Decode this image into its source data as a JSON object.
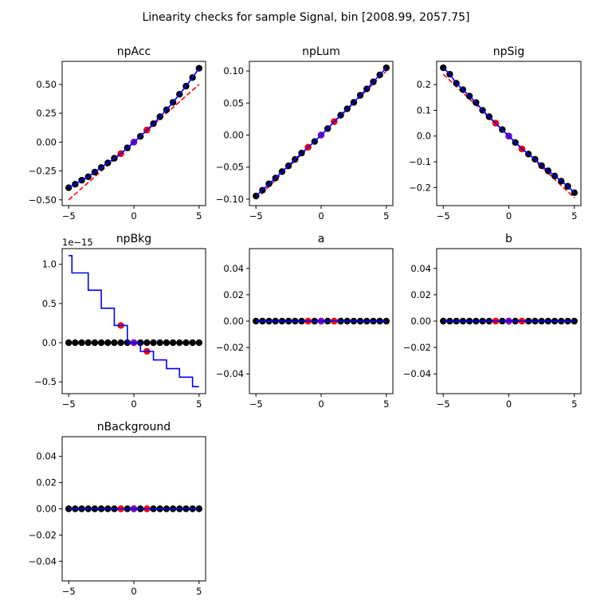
{
  "figure": {
    "title": "Linearity checks for sample Signal, bin [2008.99, 2057.75]"
  },
  "colors": {
    "points": "#000000",
    "highlight": "#ff0000",
    "center": "#7f00bf",
    "fit_line": "#0000ff",
    "reference_line": "#ff0000"
  },
  "chart_data": [
    {
      "type": "scatter",
      "title": "npAcc",
      "x": [
        -5,
        -4.5,
        -4,
        -3.5,
        -3,
        -2.5,
        -2,
        -1.5,
        -1,
        -0.5,
        0,
        0.5,
        1,
        1.5,
        2,
        2.5,
        3,
        3.5,
        4,
        4.5,
        5
      ],
      "y": [
        -0.395,
        -0.365,
        -0.33,
        -0.3,
        -0.26,
        -0.22,
        -0.18,
        -0.14,
        -0.1,
        -0.05,
        0.0,
        0.05,
        0.105,
        0.16,
        0.22,
        0.28,
        0.345,
        0.415,
        0.485,
        0.56,
        0.64
      ],
      "highlight_points": [
        {
          "x": -1,
          "y": -0.1
        },
        {
          "x": 1,
          "y": 0.105
        }
      ],
      "center_point": {
        "x": 0,
        "y": 0.0
      },
      "fit_line": {
        "x": [
          -5,
          -4.5,
          -4,
          -3.5,
          -3,
          -2.5,
          -2,
          -1.5,
          -1,
          -0.5,
          0,
          0.5,
          1,
          1.5,
          2,
          2.5,
          3,
          3.5,
          4,
          4.5,
          5
        ],
        "y": [
          -0.395,
          -0.365,
          -0.33,
          -0.3,
          -0.26,
          -0.22,
          -0.18,
          -0.14,
          -0.1,
          -0.05,
          0.0,
          0.05,
          0.105,
          0.16,
          0.22,
          0.28,
          0.345,
          0.415,
          0.485,
          0.56,
          0.64
        ]
      },
      "reference_line": {
        "x": [
          -5,
          5
        ],
        "y": [
          -0.5,
          0.5
        ]
      },
      "xlim": [
        -5.5,
        5.5
      ],
      "ylim": [
        -0.55,
        0.7
      ],
      "xticks": [
        {
          "v": -5,
          "label": "−5"
        },
        {
          "v": 0,
          "label": "0"
        },
        {
          "v": 5,
          "label": "5"
        }
      ],
      "yticks": [
        {
          "v": -0.5,
          "label": "−0.50"
        },
        {
          "v": -0.25,
          "label": "−0.25"
        },
        {
          "v": 0,
          "label": "0.00"
        },
        {
          "v": 0.25,
          "label": "0.25"
        },
        {
          "v": 0.5,
          "label": "0.50"
        }
      ],
      "offset_label": ""
    },
    {
      "type": "scatter",
      "title": "npLum",
      "x": [
        -5,
        -4.5,
        -4,
        -3.5,
        -3,
        -2.5,
        -2,
        -1.5,
        -1,
        -0.5,
        0,
        0.5,
        1,
        1.5,
        2,
        2.5,
        3,
        3.5,
        4,
        4.5,
        5
      ],
      "y": [
        -0.095,
        -0.086,
        -0.076,
        -0.067,
        -0.057,
        -0.048,
        -0.038,
        -0.028,
        -0.019,
        -0.01,
        0.0,
        0.01,
        0.021,
        0.031,
        0.041,
        0.051,
        0.062,
        0.072,
        0.083,
        0.094,
        0.105
      ],
      "highlight_points": [
        {
          "x": -1,
          "y": -0.019
        },
        {
          "x": 1,
          "y": 0.021
        }
      ],
      "center_point": {
        "x": 0,
        "y": 0.0
      },
      "fit_line": {
        "x": [
          -5,
          -4.5,
          -4,
          -3.5,
          -3,
          -2.5,
          -2,
          -1.5,
          -1,
          -0.5,
          0,
          0.5,
          1,
          1.5,
          2,
          2.5,
          3,
          3.5,
          4,
          4.5,
          5
        ],
        "y": [
          -0.095,
          -0.086,
          -0.076,
          -0.067,
          -0.057,
          -0.048,
          -0.038,
          -0.028,
          -0.019,
          -0.01,
          0.0,
          0.01,
          0.021,
          0.031,
          0.041,
          0.051,
          0.062,
          0.072,
          0.083,
          0.094,
          0.105
        ]
      },
      "reference_line": {
        "x": [
          -5,
          5
        ],
        "y": [
          -0.1,
          0.1
        ]
      },
      "xlim": [
        -5.5,
        5.5
      ],
      "ylim": [
        -0.11,
        0.115
      ],
      "xticks": [
        {
          "v": -5,
          "label": "−5"
        },
        {
          "v": 0,
          "label": "0"
        },
        {
          "v": 5,
          "label": "5"
        }
      ],
      "yticks": [
        {
          "v": -0.1,
          "label": "−0.10"
        },
        {
          "v": -0.05,
          "label": "−0.05"
        },
        {
          "v": 0,
          "label": "0.00"
        },
        {
          "v": 0.05,
          "label": "0.05"
        },
        {
          "v": 0.1,
          "label": "0.10"
        }
      ],
      "offset_label": ""
    },
    {
      "type": "scatter",
      "title": "npSig",
      "x": [
        -5,
        -4.5,
        -4,
        -3.5,
        -3,
        -2.5,
        -2,
        -1.5,
        -1,
        -0.5,
        0,
        0.5,
        1,
        1.5,
        2,
        2.5,
        3,
        3.5,
        4,
        4.5,
        5
      ],
      "y": [
        0.265,
        0.24,
        0.205,
        0.18,
        0.155,
        0.13,
        0.1,
        0.075,
        0.05,
        0.025,
        0.0,
        -0.025,
        -0.05,
        -0.07,
        -0.09,
        -0.115,
        -0.135,
        -0.155,
        -0.175,
        -0.195,
        -0.22
      ],
      "highlight_points": [
        {
          "x": -1,
          "y": 0.05
        },
        {
          "x": 1,
          "y": -0.05
        }
      ],
      "center_point": {
        "x": 0,
        "y": 0.0
      },
      "fit_line": {
        "x": [
          -5,
          -4.5,
          -4,
          -3.5,
          -3,
          -2.5,
          -2,
          -1.5,
          -1,
          -0.5,
          0,
          0.5,
          1,
          1.5,
          2,
          2.5,
          3,
          3.5,
          4,
          4.5,
          5
        ],
        "y": [
          0.265,
          0.24,
          0.205,
          0.18,
          0.155,
          0.13,
          0.1,
          0.075,
          0.05,
          0.025,
          0.0,
          -0.025,
          -0.05,
          -0.07,
          -0.09,
          -0.115,
          -0.135,
          -0.155,
          -0.175,
          -0.195,
          -0.22
        ]
      },
      "reference_line": {
        "x": [
          -5,
          5
        ],
        "y": [
          0.24,
          -0.24
        ]
      },
      "xlim": [
        -5.5,
        5.5
      ],
      "ylim": [
        -0.27,
        0.29
      ],
      "xticks": [
        {
          "v": -5,
          "label": "−5"
        },
        {
          "v": 0,
          "label": "0"
        },
        {
          "v": 5,
          "label": "5"
        }
      ],
      "yticks": [
        {
          "v": -0.2,
          "label": "−0.2"
        },
        {
          "v": -0.1,
          "label": "−0.1"
        },
        {
          "v": 0,
          "label": "0.0"
        },
        {
          "v": 0.1,
          "label": "0.1"
        },
        {
          "v": 0.2,
          "label": "0.2"
        }
      ],
      "offset_label": ""
    },
    {
      "type": "scatter",
      "title": "npBkg",
      "x": [
        -5,
        -4.5,
        -4,
        -3.5,
        -3,
        -2.5,
        -2,
        -1.5,
        -1,
        -0.5,
        0,
        0.5,
        1,
        1.5,
        2,
        2.5,
        3,
        3.5,
        4,
        4.5,
        5
      ],
      "y": [
        0,
        0,
        0,
        0,
        0,
        0,
        0,
        0,
        0,
        0,
        0,
        0,
        0,
        0,
        0,
        0,
        0,
        0,
        0,
        0,
        0
      ],
      "highlight_points": [
        {
          "x": -1,
          "y": 0.22
        },
        {
          "x": 1,
          "y": -0.11
        }
      ],
      "center_point": {
        "x": 0,
        "y": 0.0
      },
      "fit_line": {
        "x": [
          -5,
          -4.75,
          -4.75,
          -4.5,
          -4.5,
          -4,
          -4,
          -3.5,
          -3.5,
          -3,
          -3,
          -2.5,
          -2.5,
          -2,
          -2,
          -1.5,
          -1.5,
          -1,
          -1,
          -0.5,
          -0.5,
          0,
          0,
          0.5,
          0.5,
          1,
          1,
          1.5,
          1.5,
          2,
          2,
          2.5,
          2.5,
          3,
          3,
          3.5,
          3.5,
          4,
          4,
          4.5,
          4.5,
          5
        ],
        "y": [
          1.11,
          1.11,
          0.89,
          0.89,
          0.89,
          0.89,
          0.89,
          0.89,
          0.67,
          0.67,
          0.67,
          0.67,
          0.44,
          0.44,
          0.44,
          0.44,
          0.22,
          0.22,
          0.22,
          0.22,
          0.0,
          0.0,
          0.0,
          0.0,
          -0.11,
          -0.11,
          -0.11,
          -0.11,
          -0.22,
          -0.22,
          -0.22,
          -0.22,
          -0.33,
          -0.33,
          -0.33,
          -0.33,
          -0.44,
          -0.44,
          -0.44,
          -0.44,
          -0.56,
          -0.56
        ]
      },
      "reference_line": null,
      "xlim": [
        -5.5,
        5.5
      ],
      "ylim": [
        -0.65,
        1.2
      ],
      "xticks": [
        {
          "v": -5,
          "label": "−5"
        },
        {
          "v": 0,
          "label": "0"
        },
        {
          "v": 5,
          "label": "5"
        }
      ],
      "yticks": [
        {
          "v": -0.5,
          "label": "−0.5"
        },
        {
          "v": 0,
          "label": "0.0"
        },
        {
          "v": 0.5,
          "label": "0.5"
        },
        {
          "v": 1,
          "label": "1.0"
        }
      ],
      "offset_label": "1e−15"
    },
    {
      "type": "scatter",
      "title": "a",
      "x": [
        -5,
        -4.5,
        -4,
        -3.5,
        -3,
        -2.5,
        -2,
        -1.5,
        -1,
        -0.5,
        0,
        0.5,
        1,
        1.5,
        2,
        2.5,
        3,
        3.5,
        4,
        4.5,
        5
      ],
      "y": [
        0,
        0,
        0,
        0,
        0,
        0,
        0,
        0,
        0,
        0,
        0,
        0,
        0,
        0,
        0,
        0,
        0,
        0,
        0,
        0,
        0
      ],
      "highlight_points": [
        {
          "x": -1,
          "y": 0
        },
        {
          "x": 1,
          "y": 0
        }
      ],
      "center_point": {
        "x": 0,
        "y": 0
      },
      "fit_line": {
        "x": [
          -5,
          5
        ],
        "y": [
          0,
          0
        ]
      },
      "reference_line": null,
      "xlim": [
        -5.5,
        5.5
      ],
      "ylim": [
        -0.055,
        0.055
      ],
      "xticks": [
        {
          "v": -5,
          "label": "−5"
        },
        {
          "v": 0,
          "label": "0"
        },
        {
          "v": 5,
          "label": "5"
        }
      ],
      "yticks": [
        {
          "v": -0.04,
          "label": "−0.04"
        },
        {
          "v": -0.02,
          "label": "−0.02"
        },
        {
          "v": 0,
          "label": "0.00"
        },
        {
          "v": 0.02,
          "label": "0.02"
        },
        {
          "v": 0.04,
          "label": "0.04"
        }
      ],
      "offset_label": ""
    },
    {
      "type": "scatter",
      "title": "b",
      "x": [
        -5,
        -4.5,
        -4,
        -3.5,
        -3,
        -2.5,
        -2,
        -1.5,
        -1,
        -0.5,
        0,
        0.5,
        1,
        1.5,
        2,
        2.5,
        3,
        3.5,
        4,
        4.5,
        5
      ],
      "y": [
        0,
        0,
        0,
        0,
        0,
        0,
        0,
        0,
        0,
        0,
        0,
        0,
        0,
        0,
        0,
        0,
        0,
        0,
        0,
        0,
        0
      ],
      "highlight_points": [
        {
          "x": -1,
          "y": 0
        },
        {
          "x": 1,
          "y": 0
        }
      ],
      "center_point": {
        "x": 0,
        "y": 0
      },
      "fit_line": {
        "x": [
          -5,
          5
        ],
        "y": [
          0,
          0
        ]
      },
      "reference_line": null,
      "xlim": [
        -5.5,
        5.5
      ],
      "ylim": [
        -0.055,
        0.055
      ],
      "xticks": [
        {
          "v": -5,
          "label": "−5"
        },
        {
          "v": 0,
          "label": "0"
        },
        {
          "v": 5,
          "label": "5"
        }
      ],
      "yticks": [
        {
          "v": -0.04,
          "label": "−0.04"
        },
        {
          "v": -0.02,
          "label": "−0.02"
        },
        {
          "v": 0,
          "label": "0.00"
        },
        {
          "v": 0.02,
          "label": "0.02"
        },
        {
          "v": 0.04,
          "label": "0.04"
        }
      ],
      "offset_label": ""
    },
    {
      "type": "scatter",
      "title": "nBackground",
      "x": [
        -5,
        -4.5,
        -4,
        -3.5,
        -3,
        -2.5,
        -2,
        -1.5,
        -1,
        -0.5,
        0,
        0.5,
        1,
        1.5,
        2,
        2.5,
        3,
        3.5,
        4,
        4.5,
        5
      ],
      "y": [
        0,
        0,
        0,
        0,
        0,
        0,
        0,
        0,
        0,
        0,
        0,
        0,
        0,
        0,
        0,
        0,
        0,
        0,
        0,
        0,
        0
      ],
      "highlight_points": [
        {
          "x": -1,
          "y": 0
        },
        {
          "x": 1,
          "y": 0
        }
      ],
      "center_point": {
        "x": 0,
        "y": 0
      },
      "fit_line": {
        "x": [
          -5,
          5
        ],
        "y": [
          0,
          0
        ]
      },
      "reference_line": null,
      "xlim": [
        -5.5,
        5.5
      ],
      "ylim": [
        -0.055,
        0.055
      ],
      "xticks": [
        {
          "v": -5,
          "label": "−5"
        },
        {
          "v": 0,
          "label": "0"
        },
        {
          "v": 5,
          "label": "5"
        }
      ],
      "yticks": [
        {
          "v": -0.04,
          "label": "−0.04"
        },
        {
          "v": -0.02,
          "label": "−0.02"
        },
        {
          "v": 0,
          "label": "0.00"
        },
        {
          "v": 0.02,
          "label": "0.02"
        },
        {
          "v": 0.04,
          "label": "0.04"
        }
      ],
      "offset_label": ""
    }
  ]
}
